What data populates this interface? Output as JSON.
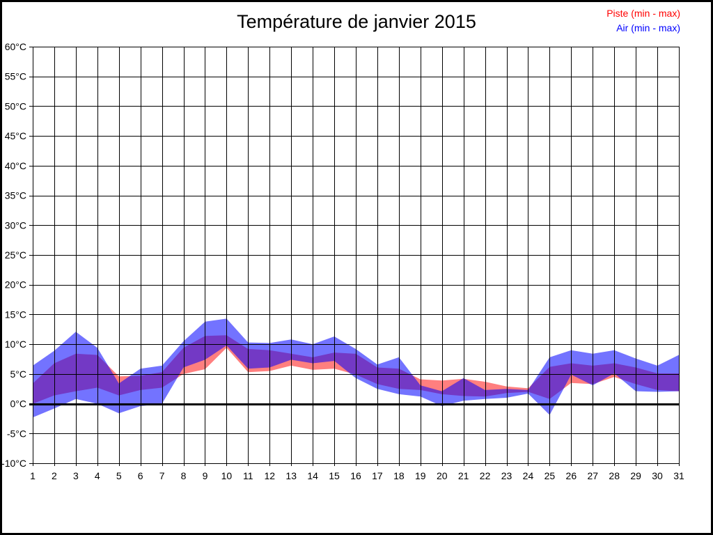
{
  "chart_data": {
    "type": "area",
    "title": "Température de janvier 2015",
    "xlabel": "",
    "ylabel": "",
    "xlim": [
      1,
      31
    ],
    "ylim": [
      -10,
      60
    ],
    "grid": true,
    "zero_line_value": 0,
    "legend_position": "top-right",
    "x": [
      1,
      2,
      3,
      4,
      5,
      6,
      7,
      8,
      9,
      10,
      11,
      12,
      13,
      14,
      15,
      16,
      17,
      18,
      19,
      20,
      21,
      22,
      23,
      24,
      25,
      26,
      27,
      28,
      29,
      30,
      31
    ],
    "x_tick_labels": [
      "1",
      "2",
      "3",
      "4",
      "5",
      "6",
      "7",
      "8",
      "9",
      "10",
      "11",
      "12",
      "13",
      "14",
      "15",
      "16",
      "17",
      "18",
      "19",
      "20",
      "21",
      "22",
      "23",
      "24",
      "25",
      "26",
      "27",
      "28",
      "29",
      "30",
      "31"
    ],
    "y_ticks": [
      {
        "value": 60,
        "label": "60°C"
      },
      {
        "value": 55,
        "label": "55°C"
      },
      {
        "value": 50,
        "label": "50°C"
      },
      {
        "value": 45,
        "label": "45°C"
      },
      {
        "value": 40,
        "label": "40°C"
      },
      {
        "value": 35,
        "label": "35°C"
      },
      {
        "value": 30,
        "label": "30°C"
      },
      {
        "value": 25,
        "label": "25°C"
      },
      {
        "value": 20,
        "label": "20°C"
      },
      {
        "value": 15,
        "label": "15°C"
      },
      {
        "value": 10,
        "label": "10°C"
      },
      {
        "value": 5,
        "label": "5°C"
      },
      {
        "value": 0,
        "label": "0°C"
      },
      {
        "value": -5,
        "label": "-5°C"
      },
      {
        "value": -10,
        "label": "-10°C"
      }
    ],
    "series": [
      {
        "name": "Piste (min - max)",
        "band": "min-max",
        "color": "#ff0000",
        "fill_opacity": 0.5,
        "min": [
          0.0,
          1.4,
          2.1,
          2.7,
          1.4,
          2.3,
          2.7,
          5.0,
          5.8,
          9.4,
          5.3,
          5.5,
          6.4,
          5.7,
          5.9,
          4.9,
          3.3,
          2.5,
          2.3,
          1.6,
          1.3,
          1.2,
          1.8,
          2.0,
          0.8,
          3.5,
          3.3,
          4.5,
          3.3,
          2.3,
          2.1
        ],
        "max": [
          3.4,
          6.8,
          8.4,
          8.2,
          4.6,
          4.7,
          5.3,
          9.4,
          11.4,
          11.5,
          9.2,
          9.0,
          8.4,
          7.8,
          8.6,
          8.4,
          6.1,
          5.9,
          4.1,
          3.9,
          4.2,
          3.7,
          2.9,
          2.6,
          6.2,
          6.8,
          6.4,
          6.8,
          6.1,
          5.1,
          5.1
        ]
      },
      {
        "name": "Air (min - max)",
        "band": "min-max",
        "color": "#0000ff",
        "fill_opacity": 0.55,
        "min": [
          -2.3,
          -0.8,
          0.8,
          0.0,
          -1.6,
          -0.4,
          0.0,
          6.1,
          7.4,
          9.8,
          5.9,
          6.1,
          7.4,
          6.8,
          7.2,
          4.3,
          2.5,
          1.6,
          1.2,
          -0.4,
          0.5,
          0.8,
          1.0,
          1.7,
          -1.9,
          4.9,
          3.1,
          5.1,
          2.1,
          2.0,
          2.1
        ],
        "max": [
          6.4,
          8.9,
          12.1,
          9.4,
          3.4,
          5.9,
          6.4,
          10.5,
          13.8,
          14.3,
          10.3,
          10.2,
          10.8,
          10.0,
          11.3,
          9.2,
          6.6,
          7.8,
          3.1,
          2.1,
          4.3,
          2.3,
          2.5,
          2.3,
          7.8,
          9.0,
          8.4,
          9.0,
          7.6,
          6.4,
          8.2
        ]
      }
    ],
    "grid_color": "#000000",
    "zero_line_color": "#000000",
    "border_color": "#000000"
  }
}
